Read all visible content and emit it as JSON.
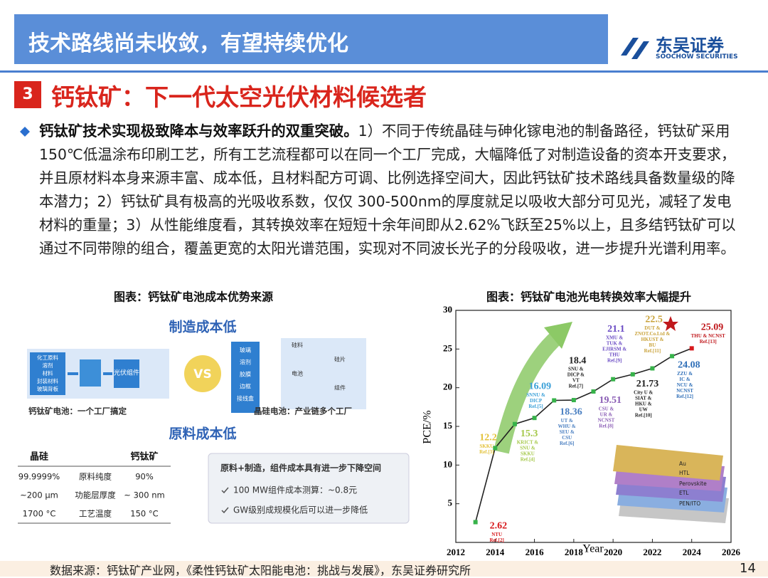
{
  "header": {
    "title": "技术路线尚未收敛，有望持续优化",
    "logo_cn": "东吴证券",
    "logo_en": "SOOCHOW SECURITIES"
  },
  "section": {
    "number": "3",
    "title": "钙钛矿：下一代太空光伏材料候选者"
  },
  "body": {
    "lead": "钙钛矿技术实现极致降本与效率跃升的双重突破。",
    "text": "1）不同于传统晶硅与砷化镓电池的制备路径，钙钛矿采用150℃低温涂布印刷工艺，所有工艺流程都可以在同一个工厂完成，大幅降低了对制造设备的资本开支要求，并且原材料本身来源丰富、成本低，且材料配方可调、比例选择空间大，因此钙钛矿技术路线具备数量级的降本潜力；2）钙钛矿具有极高的光吸收系数，仅仅 300-500nm的厚度就足以吸收大部分可见光，减轻了发电材料的重量；3）从性能维度看，其转换效率在短短十余年间即从2.62%飞跃至25%以上，且多结钙钛矿可以通过不同带隙的组合，覆盖更宽的太阳光谱范围，实现对不同波长光子的分段吸收，进一步提升光谱利用率。"
  },
  "left_figure": {
    "caption": "图表：钙钛矿电池成本优势来源",
    "manufacturing": "制造成本低",
    "materials": "原料成本低",
    "vs": "VS",
    "perovskite_inputs": [
      "化工原料",
      "溶剂",
      "材料",
      "封装材料",
      "玻璃背板"
    ],
    "module": "光伏组件",
    "silicon_inputs": [
      "玻璃",
      "溶剂",
      "胶膜",
      "边框",
      "接线盒"
    ],
    "silicon_steps": [
      "硅料",
      "硅片",
      "电池",
      "组件"
    ],
    "perovskite_note": "钙钛矿电池：一个工厂搞定",
    "silicon_note": "晶硅电池：产业链多个工厂",
    "table": {
      "header": [
        "晶硅",
        "钙钛矿"
      ],
      "rows": [
        [
          "99.9999%",
          "原料纯度",
          "90%"
        ],
        [
          "~200 μm",
          "功能层厚度",
          "~ 300 nm"
        ],
        [
          "1700 °C",
          "工艺温度",
          "150 °C"
        ]
      ]
    },
    "box": {
      "title": "原料+制造，组件成本具有进一步下降空间",
      "items": [
        "100 MW组件成本测算：~0.8元",
        "GW级别成规模化后可以进一步降低"
      ]
    }
  },
  "chart_data": {
    "type": "line",
    "title": "图表：钙钛矿电池光电转换效率大幅提升",
    "x_label": "Year",
    "y_label": "PCE/%",
    "x": [
      2013,
      2014,
      2015,
      2016,
      2017,
      2018,
      2019,
      2020,
      2021,
      2022,
      2023,
      2024
    ],
    "series": [
      {
        "name": "PCE",
        "color": "#222222",
        "marker_color": "#37b34a",
        "values": [
          2.62,
          12.2,
          15.3,
          16.09,
          18.36,
          18.4,
          19.51,
          21.1,
          21.73,
          22.5,
          24.08,
          25.09
        ]
      }
    ],
    "label_colors": [
      "#d7191c",
      "#e3c23a",
      "#a5c84a",
      "#3aa0d8",
      "#4a7fc1",
      "#222222",
      "#8a5db5",
      "#6a4bc4",
      "#222222",
      "#c9a23a",
      "#2f6fb8",
      "#c0181c"
    ],
    "annotations": [
      [
        "NTU",
        "Ref.[2]"
      ],
      [
        "SKKU",
        "Ref.[3]"
      ],
      [
        "KRICT &",
        "SNU &",
        "SKKU",
        "Ref.[4]"
      ],
      [
        "SNNU &",
        "DICP",
        "Ref.[5]"
      ],
      [
        "UT &",
        "WHU &",
        "SEU &",
        "CSU",
        "Ref.[6]"
      ],
      [
        "SNU &",
        "DICP &",
        "VT",
        "Ref.[7]"
      ],
      [
        "CSU &",
        "UR &",
        "NCNST",
        "Ref.[8]"
      ],
      [
        "XMU &",
        "TUK &",
        "EJIRSM &",
        "THU",
        "Ref.[9]"
      ],
      [
        "City U &",
        "SIAT &",
        "HKU &",
        "UW",
        "Ref.[10]"
      ],
      [
        "DUT &",
        "ZNOT.Co.Ltd &",
        "HKUST &",
        "BU",
        "Ref.[11]"
      ],
      [
        "ZZU &",
        "IC &",
        "NCU &",
        "NCNST",
        "Ref.[12]"
      ],
      [
        "THU & NCNST",
        "Ref.[13]"
      ]
    ],
    "inset_layers": [
      "Au",
      "HTL",
      "Perovskite",
      "ETL",
      "PEN/ITO"
    ],
    "xlim": [
      2012,
      2026
    ],
    "ylim": [
      0,
      30
    ],
    "xticks": [
      2012,
      2014,
      2016,
      2018,
      2020,
      2022,
      2024,
      2026
    ],
    "yticks": [
      5,
      10,
      15,
      20,
      25,
      30
    ]
  },
  "footer": {
    "source": "数据来源：钙钛矿产业网，《柔性钙钛矿太阳能电池：挑战与发展》，东吴证券研究所",
    "page": "14"
  }
}
